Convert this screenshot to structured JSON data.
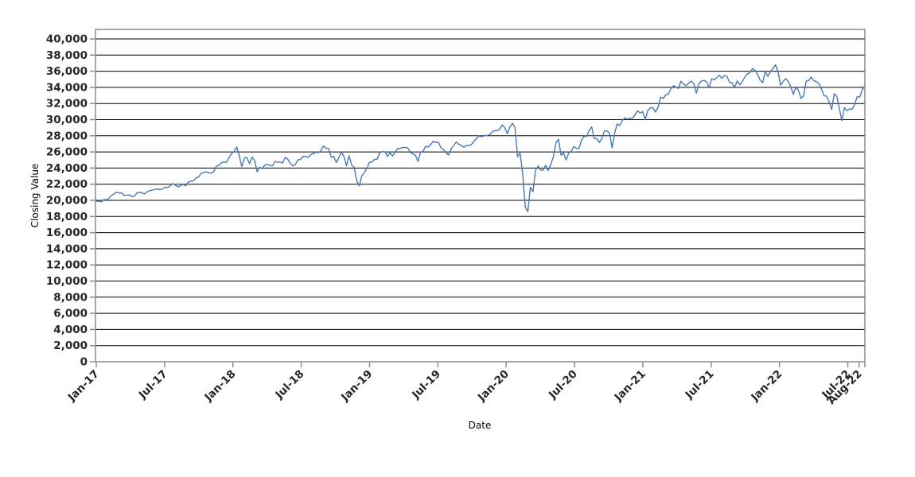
{
  "page": {
    "background": "#ffffff"
  },
  "chart_data": {
    "type": "line",
    "title": "",
    "xlabel": "Date",
    "ylabel": "Closing Value",
    "legend": "none",
    "grid": "horizontal",
    "ylim": [
      0,
      41200
    ],
    "xlim_months": [
      0,
      67.5
    ],
    "y_ticks": [
      0,
      2000,
      4000,
      6000,
      8000,
      10000,
      12000,
      14000,
      16000,
      18000,
      20000,
      22000,
      24000,
      26000,
      28000,
      30000,
      32000,
      34000,
      36000,
      38000,
      40000
    ],
    "x_ticks": [
      {
        "label": "Jan-17",
        "month": 0
      },
      {
        "label": "Jul-17",
        "month": 6
      },
      {
        "label": "Jan-18",
        "month": 12
      },
      {
        "label": "Jul-18",
        "month": 18
      },
      {
        "label": "Jan-19",
        "month": 24
      },
      {
        "label": "Jul-19",
        "month": 30
      },
      {
        "label": "Jan-20",
        "month": 36
      },
      {
        "label": "Jul-20",
        "month": 42
      },
      {
        "label": "Jan-21",
        "month": 48
      },
      {
        "label": "Jul-21",
        "month": 54
      },
      {
        "label": "Jan-22",
        "month": 60
      },
      {
        "label": "Jul-22",
        "month": 66
      },
      {
        "label": "Aug-22",
        "month": 67
      }
    ],
    "axis_style": {
      "border_color": "#8a8a8a",
      "grid_color": "#000000",
      "tick_color": "#8a8a8a",
      "tick_label_color": "#262626"
    },
    "series": [
      {
        "name": "Closing Value",
        "color": "#4878b8",
        "start": "Jan-17",
        "end": "Aug-22",
        "sampling": "weekly, approximate values read from chart",
        "values": [
          19899,
          19886,
          19827,
          20094,
          20071,
          20269,
          20624,
          20822,
          21006,
          20903,
          20915,
          20597,
          20663,
          20656,
          20453,
          20548,
          20941,
          21007,
          20897,
          20805,
          21080,
          21206,
          21272,
          21384,
          21395,
          21350,
          21414,
          21638,
          21580,
          21830,
          22093,
          21858,
          21675,
          21814,
          21988,
          21798,
          22268,
          22350,
          22405,
          22774,
          22872,
          23329,
          23434,
          23539,
          23422,
          23358,
          23558,
          24232,
          24329,
          24652,
          24754,
          24719,
          25296,
          25803,
          26072,
          26617,
          25521,
          24191,
          25219,
          25310,
          24538,
          25336,
          24947,
          23533,
          24103,
          23933,
          24360,
          24463,
          24311,
          24263,
          24831,
          24715,
          24753,
          24635,
          25317,
          25090,
          24581,
          24271,
          24456,
          25019,
          25058,
          25451,
          25463,
          25313,
          25669,
          25790,
          25965,
          25917,
          26154,
          26744,
          26458,
          26447,
          25340,
          25444,
          24688,
          25271,
          25989,
          25413,
          24286,
          25538,
          24389,
          24101,
          22445,
          21792,
          23062,
          23433,
          23996,
          24706,
          24737,
          25064,
          25106,
          25883,
          26032,
          26026,
          25450,
          25849,
          25502,
          25929,
          26425,
          26412,
          26560,
          26543,
          26505,
          25942,
          25764,
          25586,
          24815,
          25984,
          26090,
          26719,
          26600,
          26922,
          27332,
          27154,
          27192,
          26485,
          26287,
          25886,
          25629,
          26403,
          26797,
          27219,
          26935,
          26820,
          26574,
          26817,
          26770,
          26958,
          27347,
          27681,
          28005,
          27876,
          28051,
          28015,
          28135,
          28455,
          28645,
          28635,
          28824,
          29348,
          28990,
          28256,
          29103,
          29551,
          28992,
          25409,
          25865,
          23186,
          19174,
          18592,
          21637,
          21053,
          23719,
          24242,
          23775,
          23724,
          24331,
          23685,
          24465,
          25383,
          27111,
          27572,
          25606,
          25871,
          25016,
          25827,
          26075,
          26672,
          26470,
          26428,
          27433,
          27931,
          27930,
          28654,
          29100,
          27666,
          27657,
          27174,
          27683,
          28587,
          28606,
          28336,
          26502,
          28323,
          29480,
          29263,
          29910,
          30218,
          30046,
          30179,
          30200,
          30606,
          31098,
          30814,
          30997,
          29983,
          31148,
          31458,
          31494,
          30932,
          31496,
          32779,
          32628,
          33073,
          33153,
          33801,
          34201,
          34043,
          33875,
          34778,
          34382,
          34208,
          34529,
          34756,
          34480,
          33290,
          34434,
          34786,
          34870,
          34688,
          33962,
          35062,
          34935,
          35209,
          35515,
          35120,
          35456,
          35369,
          34608,
          34585,
          33970,
          34798,
          34326,
          34746,
          35295,
          35677,
          35820,
          36328,
          36100,
          35602,
          34899,
          34580,
          35971,
          35365,
          35950,
          36338,
          36800,
          35912,
          34265,
          34725,
          35090,
          34738,
          34079,
          33132,
          34059,
          33615,
          32632,
          32944,
          34755,
          34861,
          35294,
          34818,
          34721,
          34451,
          33811,
          32977,
          32899,
          32197,
          31262,
          33213,
          32900,
          31393,
          29889,
          31500,
          31097,
          31338,
          31288,
          31899,
          32845,
          32803,
          33761,
          33980
        ]
      }
    ]
  }
}
